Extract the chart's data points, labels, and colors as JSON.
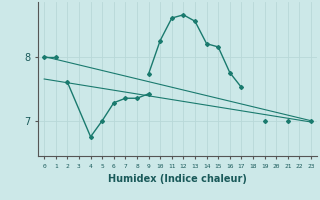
{
  "xlabel": "Humidex (Indice chaleur)",
  "background_color": "#cce8e8",
  "grid_color": "#b8d8d8",
  "line_color": "#1a7a6e",
  "y_ticks": [
    7,
    8
  ],
  "ylim": [
    6.45,
    8.85
  ],
  "xlim": [
    -0.5,
    23.5
  ],
  "line1_x": [
    0,
    1,
    9,
    10,
    11,
    12,
    13,
    14,
    15,
    16,
    17,
    19,
    21,
    23
  ],
  "line1_y": [
    8.0,
    8.0,
    7.73,
    8.25,
    8.6,
    8.65,
    8.55,
    8.2,
    8.15,
    7.75,
    7.52,
    7.0,
    7.0,
    7.0
  ],
  "line1_connected": [
    [
      0,
      1
    ],
    [
      9,
      10,
      11,
      12,
      13,
      14,
      15,
      16,
      17
    ],
    [
      19
    ],
    [
      21
    ],
    [
      23
    ]
  ],
  "line2_x": [
    2,
    4,
    5,
    6,
    7,
    8,
    9
  ],
  "line2_y": [
    7.6,
    6.75,
    7.0,
    7.28,
    7.35,
    7.35,
    7.42
  ],
  "trend1_x": [
    0,
    23
  ],
  "trend1_y": [
    8.0,
    7.0
  ],
  "trend2_x": [
    0,
    23
  ],
  "trend2_y": [
    7.65,
    6.98
  ]
}
